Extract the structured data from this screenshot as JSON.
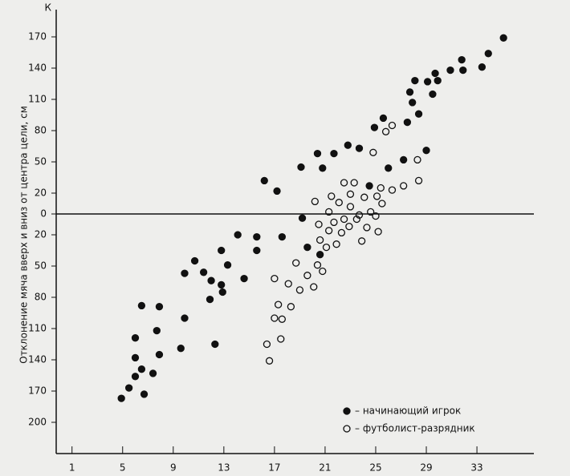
{
  "chart_data": {
    "type": "scatter",
    "y_label": "Отклонение мяча вверх и вниз от центра цели, см",
    "y_unit": "К",
    "xlim": [
      -0.25,
      37.5
    ],
    "ylim": [
      -230,
      190
    ],
    "xticks": [
      1,
      5,
      9,
      13,
      17,
      21,
      25,
      29,
      33
    ],
    "yticks": [
      170,
      140,
      110,
      80,
      50,
      20,
      0,
      {
        "value": -20,
        "label": "20"
      },
      {
        "value": -50,
        "label": "50"
      },
      {
        "value": -80,
        "label": "80"
      },
      {
        "value": -110,
        "label": "110"
      },
      {
        "value": -140,
        "label": "140"
      },
      {
        "value": -170,
        "label": "170"
      },
      {
        "value": -200,
        "label": "200"
      }
    ],
    "legend": "lower right",
    "series": [
      {
        "name": "– начинающий игрок",
        "color": "#111111",
        "filled": true,
        "x": [
          4.9,
          5.5,
          6.0,
          6.0,
          6.0,
          6.5,
          6.5,
          6.7,
          7.4,
          7.7,
          7.9,
          7.9,
          9.6,
          9.9,
          9.9,
          10.7,
          11.4,
          11.9,
          12.0,
          12.3,
          12.8,
          12.8,
          12.9,
          13.3,
          14.1,
          14.6,
          15.6,
          15.6,
          16.2,
          17.2,
          17.6,
          19.1,
          19.2,
          19.6,
          20.4,
          20.6,
          20.8,
          21.7,
          22.8,
          23.7,
          24.5,
          24.9,
          25.6,
          26.0,
          27.2,
          27.5,
          27.7,
          27.9,
          28.1,
          28.4,
          29.0,
          29.1,
          29.5,
          29.7,
          29.9,
          30.9,
          31.8,
          31.9,
          33.4,
          33.9,
          35.1
        ],
        "values": [
          -177,
          -167,
          -138,
          -119,
          -156,
          -88,
          -149,
          -173,
          -153,
          -112,
          -135,
          -89,
          -129,
          -100,
          -57,
          -45,
          -56,
          -82,
          -64,
          -125,
          -68,
          -35,
          -75,
          -49,
          -20,
          -62,
          -22,
          -35,
          32,
          22,
          -22,
          45,
          -4,
          -32,
          58,
          -39,
          44,
          58,
          66,
          63,
          27,
          83,
          92,
          44,
          52,
          88,
          117,
          107,
          128,
          96,
          61,
          127,
          115,
          135,
          128,
          138,
          148,
          138,
          141,
          154,
          169
        ]
      },
      {
        "name": "– футболист-разрядник",
        "color": "#111111",
        "filled": false,
        "x": [
          17.0,
          17.0,
          16.4,
          16.6,
          17.3,
          17.5,
          17.6,
          18.1,
          18.3,
          18.7,
          19.0,
          19.6,
          20.1,
          20.4,
          20.2,
          20.5,
          20.6,
          20.8,
          21.1,
          21.3,
          21.5,
          21.3,
          21.7,
          21.9,
          22.1,
          22.3,
          22.5,
          22.9,
          23.0,
          23.0,
          22.5,
          23.3,
          23.5,
          23.7,
          23.9,
          24.1,
          24.3,
          24.6,
          24.8,
          25.0,
          25.1,
          25.2,
          25.4,
          25.5,
          25.8,
          26.3,
          26.3,
          27.2,
          28.3,
          28.4
        ],
        "values": [
          -62,
          -100,
          -125,
          -141,
          -87,
          -120,
          -101,
          -67,
          -89,
          -47,
          -73,
          -59,
          -70,
          -49,
          12,
          -10,
          -25,
          -55,
          -32,
          2,
          17,
          -16,
          -8,
          -29,
          11,
          -18,
          -5,
          -12,
          19,
          7,
          30,
          30,
          -5,
          -1,
          -26,
          16,
          -13,
          2,
          59,
          -2,
          17,
          -17,
          25,
          10,
          79,
          85,
          23,
          27,
          52,
          32
        ]
      }
    ]
  }
}
